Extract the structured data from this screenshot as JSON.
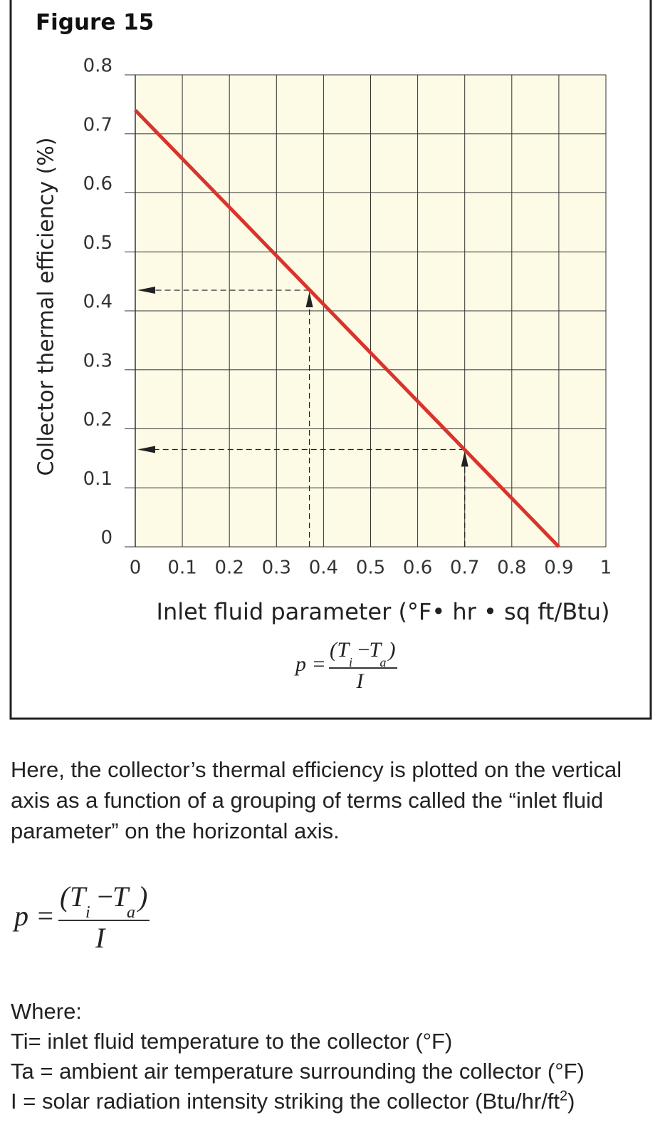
{
  "figure_label": "Figure 15",
  "chart_data": {
    "type": "line",
    "y_label": "Collector thermal efficiency (%)",
    "x_label": "Inlet fluid parameter (°F• hr • sq ft/Btu)",
    "x": [
      0,
      0.9
    ],
    "series": [
      {
        "color": "#d9342b",
        "values": [
          0.74,
          0
        ]
      }
    ],
    "guides": [
      {
        "x": 0.37,
        "y": 0.435
      },
      {
        "x": 0.7,
        "y": 0.165
      }
    ],
    "xlim": [
      0,
      1
    ],
    "xticks": [
      0,
      0.1,
      0.2,
      0.3,
      0.4,
      0.5,
      0.6,
      0.7,
      0.8,
      0.9,
      1
    ],
    "ylim": [
      0,
      0.8
    ],
    "yticks": [
      0,
      0.1,
      0.2,
      0.3,
      0.4,
      0.5,
      0.6,
      0.7,
      0.8
    ],
    "grid": true
  },
  "formula": {
    "p": "p =",
    "open": "(",
    "t1": "T",
    "s1": "i",
    "minus": "−",
    "t2": "T",
    "s2": "a",
    "close": ")",
    "den": "I"
  },
  "paragraph": "Here, the collector’s thermal efficiency is plotted on the vertical axis as a function of a grouping of terms called the “inlet fluid parameter” on the horizontal axis.",
  "where": {
    "heading": "Where:",
    "lines": [
      "Ti= inlet fluid temperature to the collector (°F)",
      "Ta = ambient air temperature surrounding the collector (°F)"
    ],
    "last": {
      "text": "I = solar radiation intensity striking the collector (Btu/hr/ft",
      "sup": "2",
      "end": ")"
    }
  }
}
